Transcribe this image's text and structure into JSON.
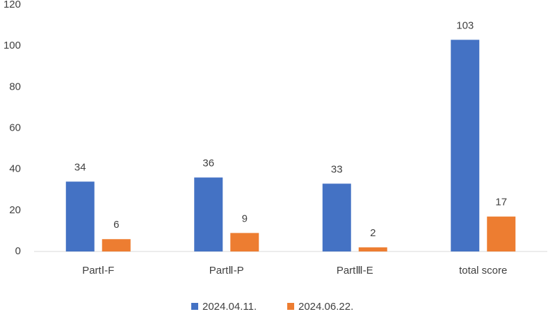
{
  "chart_data": {
    "type": "bar",
    "categories": [
      "PartⅠ-F",
      "PartⅡ-P",
      "PartⅢ-E",
      "total score"
    ],
    "series": [
      {
        "name": "2024.04.11.",
        "color": "#4472c4",
        "values": [
          34,
          36,
          33,
          103
        ]
      },
      {
        "name": "2024.06.22.",
        "color": "#ed7d31",
        "values": [
          6,
          9,
          2,
          17
        ]
      }
    ],
    "ylim": [
      0,
      120
    ],
    "yticks": [
      0,
      20,
      40,
      60,
      80,
      100,
      120
    ],
    "grid": false,
    "legend": "bottom"
  }
}
